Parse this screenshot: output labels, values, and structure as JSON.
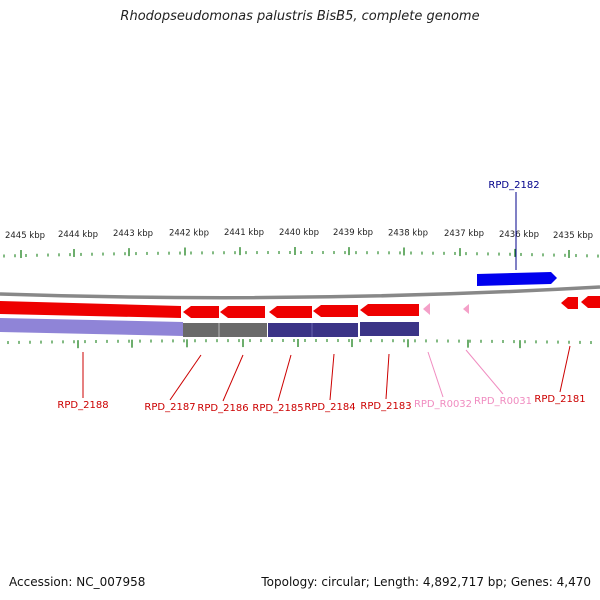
{
  "title": "Rhodopseudomonas palustris BisB5, complete genome",
  "footer": {
    "accession": "Accession: NC_007958",
    "summary": "Topology: circular; Length: 4,892,717 bp; Genes: 4,470"
  },
  "colors": {
    "forward_gene": "#0000ee",
    "reverse_gene": "#ee0000",
    "rna_gene": "#f4a0c8",
    "backbone": "#888888",
    "tick": "#2e8b2e",
    "cds_purple": "#7b6fd0",
    "cds_dark": "#3b3486",
    "cds_gray": "#6a6a6a",
    "label_red": "#cc0000",
    "label_blue": "#00008b",
    "label_pink": "#f08cc0"
  },
  "scale": {
    "unit": "kbp",
    "labels": [
      "2445 kbp",
      "2444 kbp",
      "2443 kbp",
      "2442 kbp",
      "2441 kbp",
      "2440 kbp",
      "2439 kbp",
      "2438 kbp",
      "2437 kbp",
      "2436 kbp",
      "2435 kbp"
    ]
  },
  "genes": [
    {
      "label": "RPD_2182",
      "strand": "forward",
      "kind": "gene"
    },
    {
      "label": "RPD_2188",
      "strand": "reverse",
      "kind": "gene"
    },
    {
      "label": "RPD_2187",
      "strand": "reverse",
      "kind": "gene"
    },
    {
      "label": "RPD_2186",
      "strand": "reverse",
      "kind": "gene"
    },
    {
      "label": "RPD_2185",
      "strand": "reverse",
      "kind": "gene"
    },
    {
      "label": "RPD_2184",
      "strand": "reverse",
      "kind": "gene"
    },
    {
      "label": "RPD_2183",
      "strand": "reverse",
      "kind": "gene"
    },
    {
      "label": "RPD_R0032",
      "strand": "reverse",
      "kind": "rna"
    },
    {
      "label": "RPD_R0031",
      "strand": "reverse",
      "kind": "rna"
    },
    {
      "label": "RPD_2181",
      "strand": "reverse",
      "kind": "gene"
    }
  ]
}
